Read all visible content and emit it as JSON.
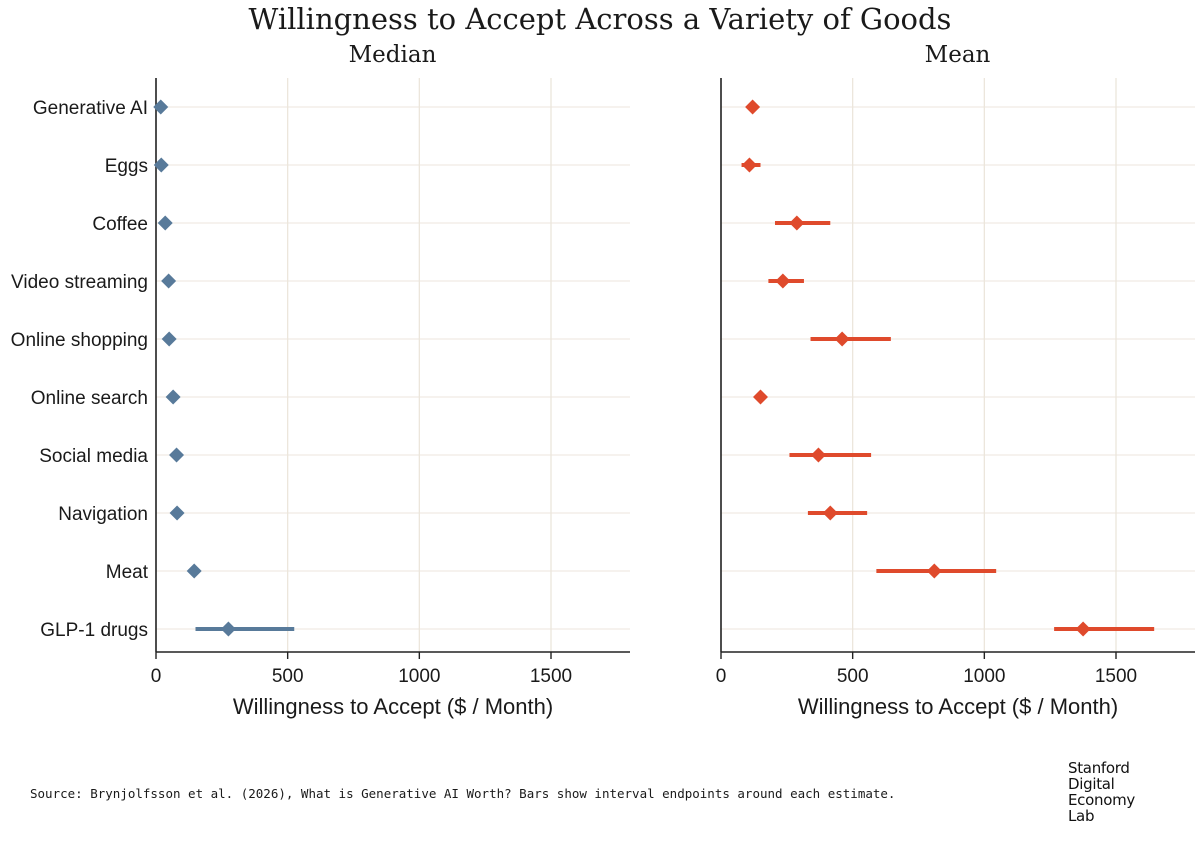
{
  "title": "Willingness to Accept Across a Variety of Goods",
  "source": "Source: Brynjolfsson et al. (2026), What is Generative AI Worth? Bars show interval endpoints around each estimate.",
  "logo_lines": [
    "Stanford",
    "Digital",
    "Economy",
    "Lab"
  ],
  "colors": {
    "median": "#587a9a",
    "mean": "#df4a2c",
    "grid": "#ece6dc",
    "axis": "#222222"
  },
  "chart_data": [
    {
      "type": "scatter",
      "title": "Median",
      "xlabel": "Willingness to Accept ($ / Month)",
      "xlim": [
        0,
        1800
      ],
      "xticks": [
        0,
        500,
        1000,
        1500
      ],
      "grid": true,
      "categories": [
        "Generative AI",
        "Eggs",
        "Coffee",
        "Video streaming",
        "Online shopping",
        "Online search",
        "Social media",
        "Navigation",
        "Meat",
        "GLP-1 drugs"
      ],
      "values": [
        18,
        20,
        35,
        48,
        50,
        65,
        78,
        80,
        145,
        275
      ],
      "intervals": [
        [
          18,
          18
        ],
        [
          20,
          20
        ],
        [
          35,
          35
        ],
        [
          48,
          48
        ],
        [
          50,
          50
        ],
        [
          65,
          65
        ],
        [
          78,
          78
        ],
        [
          80,
          80
        ],
        [
          145,
          145
        ],
        [
          150,
          525
        ]
      ]
    },
    {
      "type": "scatter",
      "title": "Mean",
      "xlabel": "Willingness to Accept ($ / Month)",
      "xlim": [
        0,
        1800
      ],
      "xticks": [
        0,
        500,
        1000,
        1500
      ],
      "grid": true,
      "categories": [
        "Generative AI",
        "Eggs",
        "Coffee",
        "Video streaming",
        "Online shopping",
        "Online search",
        "Social media",
        "Navigation",
        "Meat",
        "GLP-1 drugs"
      ],
      "values": [
        120,
        108,
        288,
        235,
        460,
        150,
        370,
        415,
        810,
        1375
      ],
      "intervals": [
        [
          120,
          120
        ],
        [
          78,
          150
        ],
        [
          205,
          415
        ],
        [
          180,
          315
        ],
        [
          340,
          645
        ],
        [
          150,
          150
        ],
        [
          260,
          570
        ],
        [
          330,
          555
        ],
        [
          590,
          1045
        ],
        [
          1265,
          1645
        ]
      ]
    }
  ]
}
